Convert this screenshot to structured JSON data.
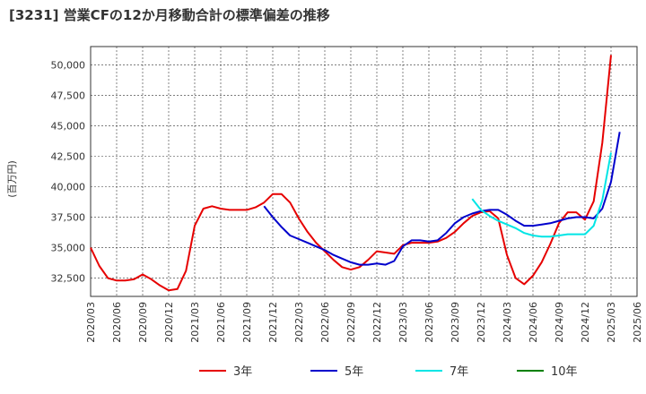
{
  "title": "[3231]  営業CFの12か月移動合計の標準偏差の推移",
  "chart_data": {
    "type": "line",
    "ylabel": "(百万円)",
    "xlabel": "",
    "ylim": [
      31000,
      51500
    ],
    "yticks": [
      32500,
      35000,
      37500,
      40000,
      42500,
      45000,
      47500,
      50000
    ],
    "ytick_labels": [
      "32,500",
      "35,000",
      "37,500",
      "40,000",
      "42,500",
      "45,000",
      "47,500",
      "50,000"
    ],
    "xticks": [
      "2020/03",
      "2020/06",
      "2020/09",
      "2020/12",
      "2021/03",
      "2021/06",
      "2021/09",
      "2021/12",
      "2022/03",
      "2022/06",
      "2022/09",
      "2022/12",
      "2023/03",
      "2023/06",
      "2023/09",
      "2023/12",
      "2024/03",
      "2024/06",
      "2024/09",
      "2024/12",
      "2025/03",
      "2025/06"
    ],
    "x_start": "2020/03",
    "grid": true,
    "legend_position": "bottom",
    "series": [
      {
        "name": "3年",
        "color": "#e60000",
        "start": "2020/03",
        "values": [
          35000,
          33500,
          32500,
          32300,
          32300,
          32400,
          32800,
          32400,
          31900,
          31500,
          31600,
          33100,
          36800,
          38200,
          38400,
          38200,
          38100,
          38100,
          38100,
          38300,
          38700,
          39400,
          39400,
          38700,
          37400,
          36300,
          35400,
          34700,
          34000,
          33400,
          33200,
          33400,
          34000,
          34700,
          34600,
          34500,
          35200,
          35400,
          35400,
          35400,
          35500,
          35800,
          36300,
          37000,
          37600,
          37900,
          38000,
          37400,
          34400,
          32500,
          32000,
          32700,
          33800,
          35300,
          37000,
          37900,
          37900,
          37300,
          38800,
          43600,
          50800
        ]
      },
      {
        "name": "5年",
        "color": "#0000cc",
        "start": "2021/11",
        "values": [
          38400,
          37500,
          36700,
          36000,
          35700,
          35400,
          35100,
          34800,
          34400,
          34100,
          33800,
          33600,
          33600,
          33700,
          33600,
          33900,
          35100,
          35600,
          35600,
          35500,
          35600,
          36200,
          37000,
          37500,
          37800,
          38000,
          38100,
          38100,
          37700,
          37200,
          36800,
          36800,
          36900,
          37000,
          37200,
          37400,
          37500,
          37500,
          37400,
          38200,
          40400,
          44500
        ]
      },
      {
        "name": "7年",
        "color": "#00e5e5",
        "start": "2023/11",
        "values": [
          39000,
          38100,
          37600,
          37200,
          36900,
          36600,
          36200,
          36000,
          35900,
          35900,
          36000,
          36100,
          36100,
          36100,
          36800,
          38900,
          42800
        ]
      },
      {
        "name": "10年",
        "color": "#008000",
        "start": "2025/03",
        "values": []
      }
    ]
  }
}
